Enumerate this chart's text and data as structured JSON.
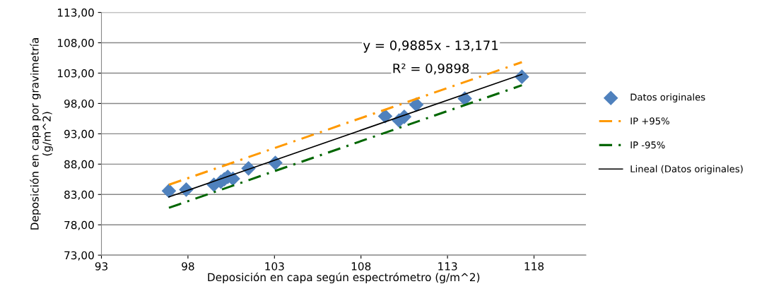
{
  "chart_data": {
    "type": "scatter",
    "xlabel": "Deposición en capa según espectrómetro (g/m^2)",
    "ylabel": "Deposición en capa por gravimetría\n(g/m^2)",
    "xlim": [
      93,
      121
    ],
    "xticks": [
      93,
      98,
      103,
      108,
      113,
      118
    ],
    "ylim": [
      73,
      113
    ],
    "yticks": [
      {
        "value": 73,
        "label": "73,00"
      },
      {
        "value": 78,
        "label": "78,00"
      },
      {
        "value": 83,
        "label": "83,00"
      },
      {
        "value": 88,
        "label": "88,00"
      },
      {
        "value": 93,
        "label": "93,00"
      },
      {
        "value": 98,
        "label": "98,00"
      },
      {
        "value": 103,
        "label": "103,00"
      },
      {
        "value": 108,
        "label": "108,00"
      },
      {
        "value": 113,
        "label": "113,00"
      }
    ],
    "grid": "y",
    "legend": "right",
    "annotations": [
      "y = 0,9885x - 13,171",
      "R² = 0,9898"
    ],
    "series": [
      {
        "name": "Datos originales",
        "marker": "diamond",
        "color": "#4f81bd",
        "x": [
          96.9,
          97.9,
          99.5,
          99.9,
          100.1,
          100.3,
          100.6,
          101.5,
          103.05,
          109.4,
          110.2,
          110.5,
          111.2,
          114.0,
          117.3
        ],
        "values": [
          83.6,
          83.8,
          84.6,
          85.1,
          85.5,
          85.9,
          85.6,
          87.3,
          88.2,
          95.9,
          95.2,
          95.8,
          97.8,
          98.8,
          102.4
        ]
      },
      {
        "name": "IP +95%",
        "type": "line",
        "line_style": "dashed",
        "color": "#ff9900",
        "x": [
          96.9,
          117.3
        ],
        "values": [
          84.6,
          104.8
        ]
      },
      {
        "name": "IP -95%",
        "type": "line",
        "line_style": "dashed",
        "color": "#006600",
        "x": [
          96.9,
          117.3
        ],
        "values": [
          80.8,
          101.0
        ]
      },
      {
        "name": "Lineal (Datos originales)",
        "type": "line",
        "line_style": "solid",
        "color": "#000000",
        "x": [
          96.9,
          117.3
        ],
        "values": [
          82.6,
          102.8
        ]
      }
    ]
  }
}
